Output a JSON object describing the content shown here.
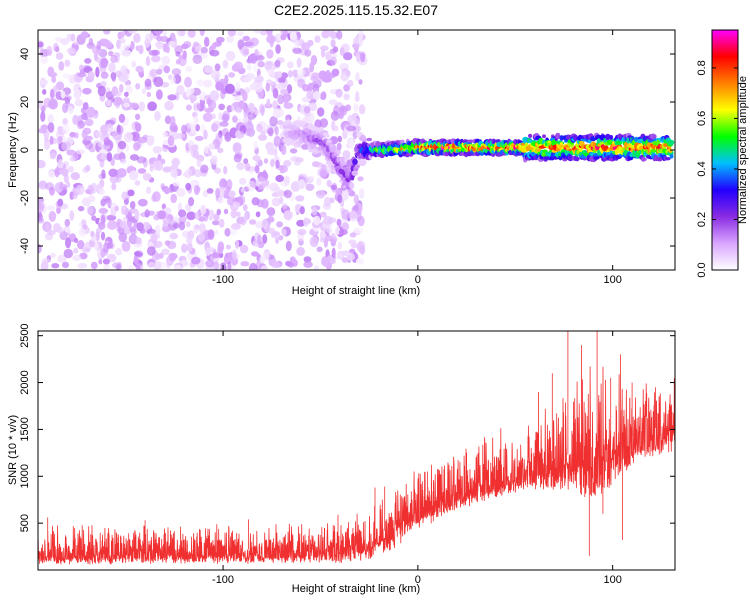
{
  "title": "C2E2.2025.115.15.32.E07",
  "chart_data": [
    {
      "type": "heatmap",
      "xlabel": "Height of straight line (km)",
      "ylabel": "Frequency (Hz)",
      "xlim": [
        -195,
        132
      ],
      "ylim": [
        -50,
        50
      ],
      "x_ticks": [
        -100,
        0,
        100
      ],
      "x_tick_labels": [
        "-100",
        "0",
        "100"
      ],
      "y_ticks": [
        -40,
        -20,
        0,
        20,
        40
      ],
      "y_tick_labels": [
        "-40",
        "-20",
        "0",
        "20",
        "40"
      ],
      "colorbar": {
        "label": "Normalized spectral amplitude",
        "range": [
          0,
          0.95
        ],
        "ticks": [
          0,
          0.2,
          0.4,
          0.6,
          0.8
        ],
        "tick_labels": [
          "0.0",
          "0.2",
          "0.4",
          "0.6",
          "0.8"
        ],
        "colormap": [
          "#ffffff",
          "#d9a6ff",
          "#8a2be2",
          "#2200ff",
          "#00bfff",
          "#00ff00",
          "#ffff00",
          "#ff8000",
          "#ff0000",
          "#ff00ff"
        ]
      },
      "noise_region": {
        "x_range": [
          -195,
          -28
        ],
        "freq_range": [
          -50,
          50
        ],
        "amplitude": 0.1
      },
      "signal_ridge": [
        {
          "x": -68,
          "freq": 8,
          "amplitude": 0.12
        },
        {
          "x": -58,
          "freq": 6,
          "amplitude": 0.15
        },
        {
          "x": -48,
          "freq": 3,
          "amplitude": 0.2
        },
        {
          "x": -40,
          "freq": -7,
          "amplitude": 0.22
        },
        {
          "x": -35,
          "freq": -13,
          "amplitude": 0.25
        },
        {
          "x": -30,
          "freq": 0,
          "amplitude": 0.3
        },
        {
          "x": -20,
          "freq": 0,
          "amplitude": 0.6
        },
        {
          "x": 0,
          "freq": 1,
          "amplitude": 0.85
        },
        {
          "x": 20,
          "freq": 1,
          "amplitude": 0.9
        },
        {
          "x": 40,
          "freq": 1,
          "amplitude": 0.9
        },
        {
          "x": 60,
          "freq": 1,
          "amplitude": 0.85
        },
        {
          "x": 80,
          "freq": 1,
          "amplitude": 0.85
        },
        {
          "x": 100,
          "freq": 1,
          "amplitude": 0.85
        },
        {
          "x": 130,
          "freq": 1,
          "amplitude": 0.85
        }
      ]
    },
    {
      "type": "line",
      "xlabel": "Height of straight line (km)",
      "ylabel": "SNR (10 * v/v)",
      "xlim": [
        -195,
        132
      ],
      "ylim": [
        0,
        2550
      ],
      "x_ticks": [
        -100,
        0,
        100
      ],
      "x_tick_labels": [
        "-100",
        "0",
        "100"
      ],
      "y_ticks": [
        500,
        1000,
        1500,
        2000,
        2500
      ],
      "y_tick_labels": [
        "500",
        "1000",
        "1500",
        "2000",
        "2500"
      ],
      "color": "#f03030",
      "series": [
        {
          "envelope": [
            {
              "x": -195,
              "low": 50,
              "high": 360
            },
            {
              "x": -150,
              "low": 60,
              "high": 380
            },
            {
              "x": -100,
              "low": 60,
              "high": 370
            },
            {
              "x": -60,
              "low": 70,
              "high": 380
            },
            {
              "x": -40,
              "low": 70,
              "high": 420
            },
            {
              "x": -25,
              "low": 100,
              "high": 550
            },
            {
              "x": -10,
              "low": 250,
              "high": 750
            },
            {
              "x": 0,
              "low": 420,
              "high": 900
            },
            {
              "x": 20,
              "low": 620,
              "high": 1130
            },
            {
              "x": 40,
              "low": 760,
              "high": 1270
            },
            {
              "x": 60,
              "low": 850,
              "high": 1420
            },
            {
              "x": 80,
              "low": 800,
              "high": 1700
            },
            {
              "x": 90,
              "low": 700,
              "high": 1800
            },
            {
              "x": 100,
              "low": 900,
              "high": 1750
            },
            {
              "x": 115,
              "low": 1150,
              "high": 1800
            },
            {
              "x": 132,
              "low": 1250,
              "high": 1900
            }
          ],
          "spikes": [
            {
              "x": -190,
              "value": 560
            },
            {
              "x": -140,
              "value": 530
            },
            {
              "x": -87,
              "value": 540
            },
            {
              "x": -41,
              "value": 590
            },
            {
              "x": -22,
              "value": 880
            },
            {
              "x": -17,
              "value": 890
            },
            {
              "x": 5,
              "value": 1050
            },
            {
              "x": 25,
              "value": 1250
            },
            {
              "x": 45,
              "value": 1350
            },
            {
              "x": 62,
              "value": 1900
            },
            {
              "x": 69,
              "value": 2100
            },
            {
              "x": 77,
              "value": 2550
            },
            {
              "x": 84,
              "value": 2400
            },
            {
              "x": 92,
              "value": 2550
            },
            {
              "x": 99,
              "value": 2050
            },
            {
              "x": 104,
              "value": 2300
            },
            {
              "x": 110,
              "value": 2000
            },
            {
              "x": 122,
              "value": 1950
            },
            {
              "x": 88,
              "value": 150
            },
            {
              "x": 105,
              "value": 320
            },
            {
              "x": 95,
              "value": 600
            }
          ]
        }
      ]
    }
  ]
}
